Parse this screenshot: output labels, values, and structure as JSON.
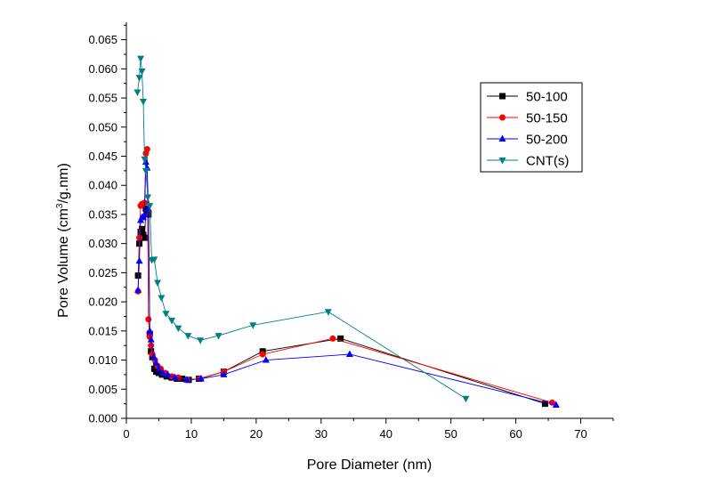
{
  "chart_data": {
    "type": "line",
    "xlabel": "Pore Diameter (nm)",
    "ylabel_main": "Pore Volume (cm",
    "ylabel_sup": "3",
    "ylabel_tail": "/g.nm)",
    "xlim": [
      0,
      75
    ],
    "ylim": [
      0,
      0.068
    ],
    "x_ticks": [
      "0",
      "10",
      "20",
      "30",
      "40",
      "50",
      "60",
      "70"
    ],
    "y_ticks": [
      "0.000",
      "0.005",
      "0.010",
      "0.015",
      "0.020",
      "0.025",
      "0.030",
      "0.035",
      "0.040",
      "0.045",
      "0.050",
      "0.055",
      "0.060",
      "0.065"
    ],
    "grid": false,
    "legend_position": "top-right",
    "series": [
      {
        "name": "50-100",
        "color": "#000000",
        "marker": "square",
        "x": [
          1.8,
          2.0,
          2.2,
          2.4,
          2.6,
          2.8,
          3.0,
          3.2,
          3.4,
          3.6,
          3.8,
          4.0,
          4.3,
          4.6,
          5.0,
          5.5,
          6.2,
          7.0,
          7.8,
          8.6,
          9.6,
          11.2,
          15.0,
          21.0,
          33.0,
          64.5
        ],
        "y": [
          0.0245,
          0.03,
          0.032,
          0.0325,
          0.0315,
          0.031,
          0.036,
          0.035,
          0.035,
          0.0145,
          0.0115,
          0.0105,
          0.0085,
          0.008,
          0.0078,
          0.0075,
          0.0072,
          0.007,
          0.0068,
          0.0068,
          0.0066,
          0.0068,
          0.008,
          0.0115,
          0.0137,
          0.0025
        ]
      },
      {
        "name": "50-150",
        "color": "#ff0000",
        "marker": "circle",
        "x": [
          1.8,
          2.0,
          2.2,
          2.4,
          2.6,
          2.8,
          3.0,
          3.2,
          3.4,
          3.6,
          3.8,
          4.0,
          4.4,
          4.8,
          5.3,
          6.0,
          7.0,
          8.0,
          9.4,
          11.3,
          15.0,
          21.0,
          31.8,
          65.6
        ],
        "y": [
          0.0218,
          0.031,
          0.0365,
          0.0368,
          0.0368,
          0.037,
          0.0455,
          0.0462,
          0.017,
          0.014,
          0.0125,
          0.011,
          0.01,
          0.009,
          0.0085,
          0.0078,
          0.0072,
          0.007,
          0.0066,
          0.0068,
          0.008,
          0.011,
          0.0137,
          0.0027
        ]
      },
      {
        "name": "50-200",
        "color": "#0000ff",
        "marker": "triangle-up",
        "x": [
          1.8,
          2.0,
          2.2,
          2.4,
          2.6,
          2.8,
          3.0,
          3.2,
          3.4,
          3.6,
          3.8,
          4.2,
          4.6,
          5.0,
          5.6,
          6.4,
          7.5,
          9.3,
          11.5,
          15.0,
          21.5,
          34.4,
          66.2
        ],
        "y": [
          0.022,
          0.027,
          0.034,
          0.0345,
          0.0345,
          0.035,
          0.044,
          0.043,
          0.036,
          0.015,
          0.0135,
          0.0105,
          0.0095,
          0.0085,
          0.0078,
          0.0075,
          0.007,
          0.0066,
          0.0068,
          0.0075,
          0.01,
          0.011,
          0.0023
        ]
      },
      {
        "name": "CNT(s)",
        "color": "#008080",
        "marker": "triangle-down",
        "x": [
          1.7,
          2.0,
          2.2,
          2.4,
          2.6,
          2.8,
          3.0,
          3.3,
          3.6,
          3.9,
          4.3,
          4.8,
          5.4,
          6.1,
          7.0,
          8.0,
          9.5,
          11.4,
          14.2,
          19.5,
          31.1,
          52.3
        ],
        "y": [
          0.056,
          0.0585,
          0.0618,
          0.0596,
          0.0544,
          0.0445,
          0.0425,
          0.038,
          0.0365,
          0.0272,
          0.0273,
          0.0233,
          0.0207,
          0.018,
          0.0168,
          0.0155,
          0.0142,
          0.0134,
          0.0142,
          0.016,
          0.0183,
          0.0034
        ]
      }
    ]
  }
}
